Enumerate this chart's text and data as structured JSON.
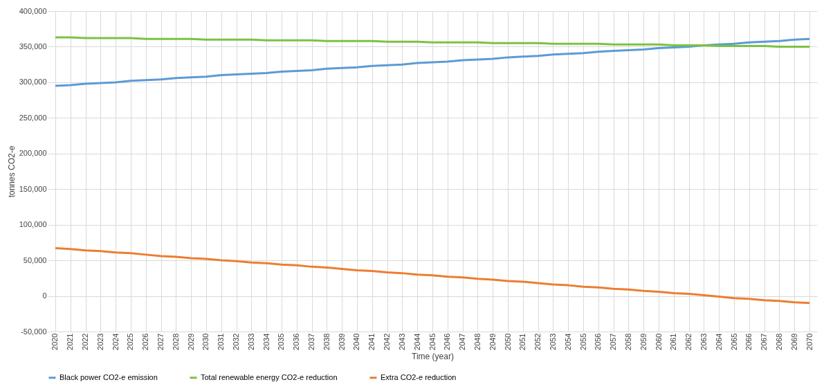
{
  "chart_data": {
    "type": "line",
    "xlabel": "Time (year)",
    "ylabel": "tonnes CO2-e",
    "categories": [
      "2020",
      "2021",
      "2022",
      "2023",
      "2024",
      "2025",
      "2026",
      "2027",
      "2028",
      "2029",
      "2030",
      "2031",
      "2032",
      "2033",
      "2034",
      "2035",
      "2036",
      "2037",
      "2038",
      "2039",
      "2040",
      "2041",
      "2042",
      "2043",
      "2044",
      "2045",
      "2046",
      "2047",
      "2048",
      "2049",
      "2050",
      "2051",
      "2052",
      "2053",
      "2054",
      "2055",
      "2056",
      "2057",
      "2058",
      "2059",
      "2060",
      "2061",
      "2062",
      "2063",
      "2064",
      "2065",
      "2066",
      "2067",
      "2068",
      "2069",
      "2070"
    ],
    "series": [
      {
        "name": "Black power CO2-e emission",
        "color": "#5b9bd5",
        "values": [
          295000,
          296000,
          298000,
          299000,
          300000,
          302000,
          303000,
          304000,
          306000,
          307000,
          308000,
          310000,
          311000,
          312000,
          313000,
          315000,
          316000,
          317000,
          319000,
          320000,
          321000,
          323000,
          324000,
          325000,
          327000,
          328000,
          329000,
          331000,
          332000,
          333000,
          335000,
          336000,
          337000,
          339000,
          340000,
          341000,
          343000,
          344000,
          345000,
          346000,
          348000,
          349000,
          350000,
          352000,
          353000,
          354000,
          356000,
          357000,
          358000,
          360000,
          361000
        ]
      },
      {
        "name": "Total renewable energy CO2-e reduction",
        "color": "#7cc242",
        "values": [
          363000,
          363000,
          362000,
          362000,
          362000,
          362000,
          361000,
          361000,
          361000,
          361000,
          360000,
          360000,
          360000,
          360000,
          359000,
          359000,
          359000,
          359000,
          358000,
          358000,
          358000,
          358000,
          357000,
          357000,
          357000,
          356000,
          356000,
          356000,
          356000,
          355000,
          355000,
          355000,
          355000,
          354000,
          354000,
          354000,
          354000,
          353000,
          353000,
          353000,
          353000,
          352000,
          352000,
          352000,
          351000,
          351000,
          351000,
          351000,
          350000,
          350000,
          350000
        ]
      },
      {
        "name": "Extra CO2-e reduction",
        "color": "#ed7d31",
        "values": [
          67000,
          66000,
          64000,
          63000,
          61000,
          60000,
          58000,
          56000,
          55000,
          53000,
          52000,
          50000,
          49000,
          47000,
          46000,
          44000,
          43000,
          41000,
          40000,
          38000,
          36000,
          35000,
          33000,
          32000,
          30000,
          29000,
          27000,
          26000,
          24000,
          23000,
          21000,
          20000,
          18000,
          16000,
          15000,
          13000,
          12000,
          10000,
          9000,
          7000,
          6000,
          4000,
          3000,
          1000,
          -1000,
          -3000,
          -4000,
          -6000,
          -7000,
          -9000,
          -10000
        ]
      }
    ],
    "ylim": [
      -50000,
      400000
    ],
    "yticks": [
      {
        "value": -50000,
        "label": "-50,000"
      },
      0,
      {
        "value": 50000,
        "label": "50,000"
      },
      {
        "value": 100000,
        "label": "100,000"
      },
      {
        "value": 150000,
        "label": "150,000"
      },
      {
        "value": 200000,
        "label": "200,000"
      },
      {
        "value": 250000,
        "label": "250,000"
      },
      {
        "value": 300000,
        "label": "300,000"
      },
      {
        "value": 350000,
        "label": "350,000"
      },
      {
        "value": 400000,
        "label": "400,000"
      }
    ],
    "grid": true,
    "legend": "bottom",
    "marker": "none",
    "line_style": "solid"
  }
}
